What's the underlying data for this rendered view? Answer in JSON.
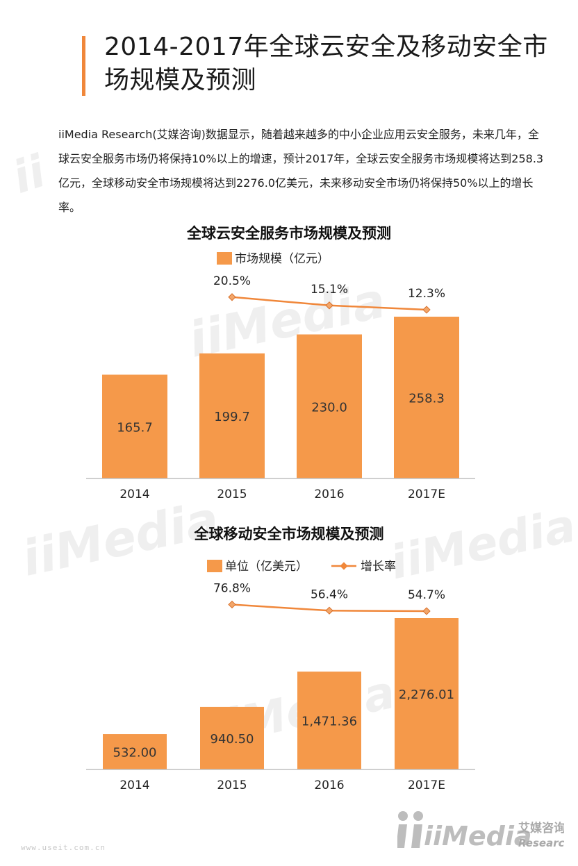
{
  "page": {
    "title": "2014-2017年全球云安全及移动安全市场规模及预测",
    "intro": "iiMedia Research(艾媒咨询)数据显示，随着越来越多的中小企业应用云安全服务，未来几年，全球云安全服务市场仍将保持10%以上的增速，预计2017年，全球云安全服务市场规模将达到258.3亿元，全球移动安全市场规模将达到2276.0亿美元，未来移动安全市场仍将保持50%以上的增长率。",
    "site": "www.useit.com.cn",
    "logo_text": "iiMedia",
    "logo_cn": "艾媒咨询",
    "logo_en": "Research"
  },
  "colors": {
    "accent": "#f0873a",
    "bar": "#f5994a",
    "line": "#f0873a",
    "axis": "#bfbfbf"
  },
  "chart_data": [
    {
      "type": "bar",
      "title": "全球云安全服务市场规模及预测",
      "categories": [
        "2014",
        "2015",
        "2016",
        "2017E"
      ],
      "series": [
        {
          "name": "市场规模（亿元）",
          "type": "bar",
          "values": [
            165.7,
            199.7,
            230.0,
            258.3
          ],
          "labels": [
            "165.7",
            "199.7",
            "230.0",
            "258.3"
          ]
        },
        {
          "type": "line",
          "values": [
            null,
            20.5,
            15.1,
            12.3
          ],
          "labels": [
            "",
            "20.5%",
            "15.1%",
            "12.3%"
          ]
        }
      ],
      "legend": [
        "市场规模（亿元）"
      ],
      "legend_position": "top"
    },
    {
      "type": "bar",
      "title": "全球移动安全市场规模及预测",
      "categories": [
        "2014",
        "2015",
        "2016",
        "2017E"
      ],
      "series": [
        {
          "name": "单位（亿美元）",
          "type": "bar",
          "values": [
            532.0,
            940.5,
            1471.36,
            2276.01
          ],
          "labels": [
            "532.00",
            "940.50",
            "1,471.36",
            "2,276.01"
          ]
        },
        {
          "name": "增长率",
          "type": "line",
          "values": [
            null,
            76.8,
            56.4,
            54.7
          ],
          "labels": [
            "",
            "76.8%",
            "56.4%",
            "54.7%"
          ]
        }
      ],
      "legend": [
        "单位（亿美元）",
        "增长率"
      ],
      "legend_position": "top"
    }
  ]
}
